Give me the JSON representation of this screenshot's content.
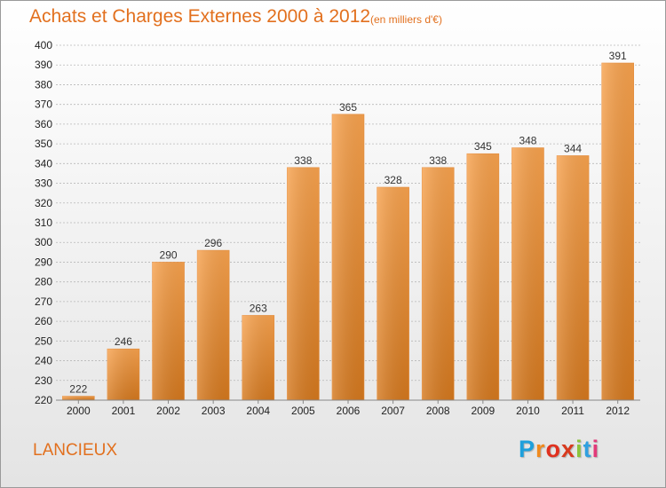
{
  "header": {
    "title": "Achats et Charges Externes 2000 à 2012",
    "subtitle": "(en milliers d'€)"
  },
  "footer": {
    "city": "LANCIEUX",
    "logo_text": "Proxiti"
  },
  "colors": {
    "accent": "#e2701e",
    "bar_light": "#f7a24e",
    "bar_dark": "#d4781e"
  },
  "chart_data": {
    "type": "bar",
    "title": "Achats et Charges Externes 2000 à 2012",
    "subtitle": "(en milliers d'€)",
    "xlabel": "",
    "ylabel": "",
    "categories": [
      "2000",
      "2001",
      "2002",
      "2003",
      "2004",
      "2005",
      "2006",
      "2007",
      "2008",
      "2009",
      "2010",
      "2011",
      "2012"
    ],
    "values": [
      222,
      246,
      290,
      296,
      263,
      338,
      365,
      328,
      338,
      345,
      348,
      344,
      391
    ],
    "ylim": [
      220,
      400
    ],
    "yticks": [
      220,
      230,
      240,
      250,
      260,
      270,
      280,
      290,
      300,
      310,
      320,
      330,
      340,
      350,
      360,
      370,
      380,
      390,
      400
    ],
    "grid": true,
    "legend": "none"
  }
}
